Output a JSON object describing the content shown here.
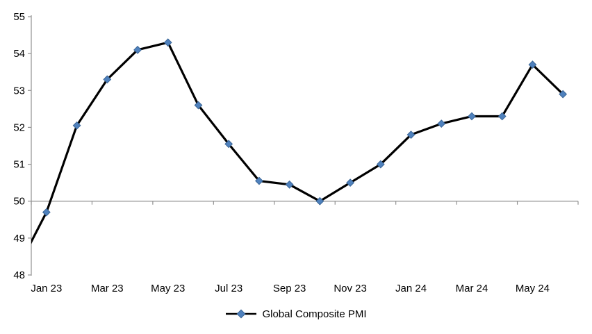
{
  "chart_data": {
    "type": "line",
    "title": "",
    "x": [
      "Dec 22",
      "Jan 23",
      "Feb 23",
      "Mar 23",
      "Apr 23",
      "May 23",
      "Jun 23",
      "Jul 23",
      "Aug 23",
      "Sep 23",
      "Oct 23",
      "Nov 23",
      "Dec 23",
      "Jan 24",
      "Feb 24",
      "Mar 24",
      "Apr 24",
      "May 24",
      "Jun 24"
    ],
    "series": [
      {
        "name": "Global Composite PMI",
        "values": [
          48.1,
          49.7,
          52.05,
          53.3,
          54.1,
          54.3,
          52.6,
          51.55,
          50.55,
          50.45,
          50.0,
          50.5,
          51.0,
          51.8,
          52.1,
          52.3,
          52.3,
          53.7,
          52.9
        ],
        "line_color": "#000000",
        "marker": "diamond",
        "marker_color": "#4f81bd",
        "marker_border_color": "#3a6596"
      }
    ],
    "xlabel": "",
    "ylabel": "",
    "ylim": [
      48,
      55
    ],
    "yticks": [
      48,
      49,
      50,
      51,
      52,
      53,
      54,
      55
    ],
    "xtick_labels": [
      "Jan 23",
      "Mar 23",
      "May 23",
      "Jul 23",
      "Sep 23",
      "Nov 23",
      "Jan 24",
      "Mar 24",
      "May 24"
    ],
    "xtick_label_every": 2,
    "category_axis_crosses_at": 50,
    "first_point_off_plot_left": true,
    "grid": false,
    "legend_position": "bottom",
    "axis_color": "#919191",
    "background": "#ffffff"
  }
}
